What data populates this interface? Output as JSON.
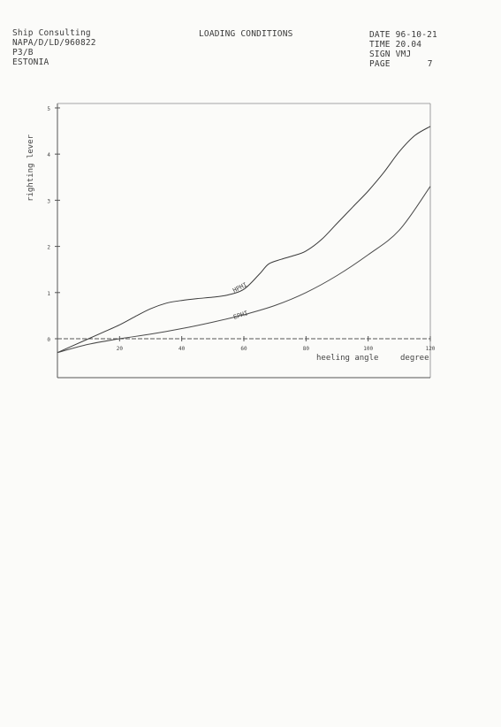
{
  "header": {
    "left": [
      "Ship Consulting",
      "NAPA/D/LD/960822",
      "P3/B",
      "ESTONIA"
    ],
    "title": "LOADING CONDITIONS",
    "right": {
      "date_label": "DATE",
      "date_value": "96-10-21",
      "time_label": "TIME",
      "time_value": "20.04",
      "sign_label": "SIGN",
      "sign_value": "VMJ",
      "page_label": "PAGE",
      "page_value": "7"
    }
  },
  "chart_data": {
    "type": "line",
    "title": "",
    "xlabel": "heeling angle",
    "xunit": "degree",
    "ylabel": "righting lever",
    "xlim": [
      0,
      120
    ],
    "ylim": [
      0,
      5
    ],
    "xticks": [
      20,
      40,
      60,
      80,
      100,
      120
    ],
    "yticks": [
      0,
      1,
      2,
      3,
      4,
      5
    ],
    "grid": false,
    "series": [
      {
        "name": "HPHI",
        "x": [
          0,
          5,
          10,
          15,
          20,
          25,
          30,
          35,
          40,
          45,
          50,
          55,
          60,
          65,
          68,
          72,
          76,
          80,
          85,
          90,
          95,
          100,
          105,
          110,
          115,
          120
        ],
        "y": [
          -0.3,
          -0.15,
          0.0,
          0.15,
          0.3,
          0.48,
          0.65,
          0.77,
          0.83,
          0.87,
          0.9,
          0.95,
          1.07,
          1.4,
          1.62,
          1.72,
          1.8,
          1.9,
          2.15,
          2.5,
          2.85,
          3.2,
          3.6,
          4.05,
          4.4,
          4.6
        ]
      },
      {
        "name": "EPHI",
        "x": [
          0,
          10,
          20,
          30,
          40,
          50,
          60,
          70,
          80,
          90,
          100,
          110,
          120
        ],
        "y": [
          -0.3,
          -0.12,
          0.0,
          0.1,
          0.22,
          0.36,
          0.52,
          0.72,
          1.0,
          1.37,
          1.82,
          2.35,
          3.3
        ]
      }
    ]
  }
}
